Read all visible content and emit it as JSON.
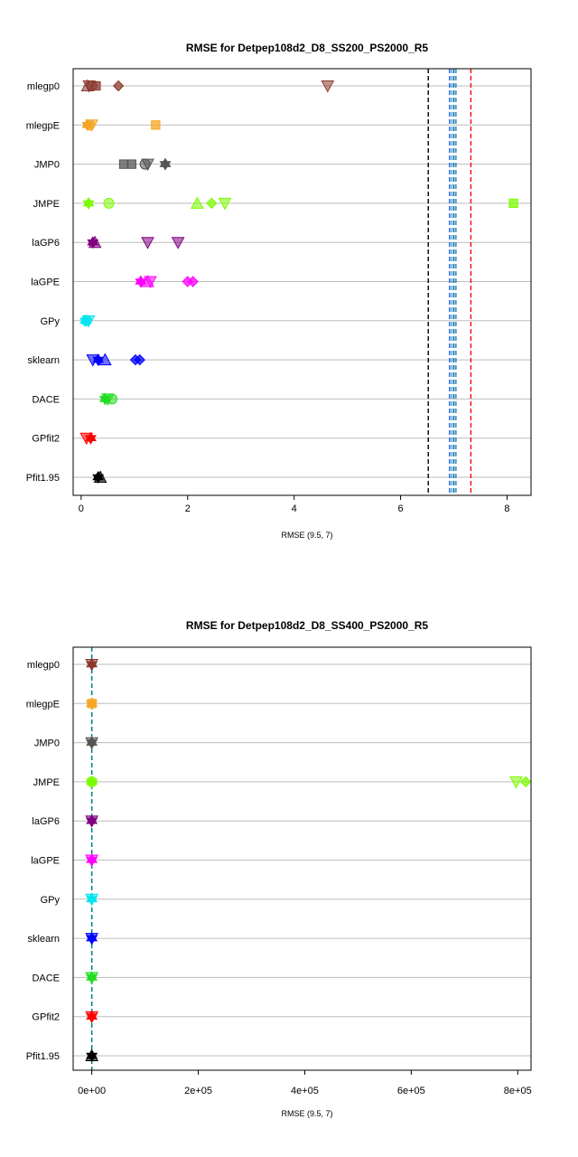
{
  "chart_data": [
    {
      "type": "scatter",
      "title": "RMSE for Detpep108d2_D8_SS200_PS2000_R5",
      "xlabel": "RMSE (9.5, 7)",
      "ylabel": "",
      "xlim": [
        -0.15,
        8.45
      ],
      "xticks": [
        0,
        2,
        4,
        6,
        8
      ],
      "xtick_labels": [
        "0",
        "2",
        "4",
        "6",
        "8"
      ],
      "grid": "horizontal",
      "categories": [
        "mlegp0",
        "mlegpE",
        "JMP0",
        "JMPE",
        "laGP6",
        "laGPE",
        "GPy",
        "sklearn",
        "DACE",
        "GPfit2",
        "GPfit1.95"
      ],
      "category_labels": [
        "mlegp0",
        "mlegpE",
        "JMP0",
        "JMPE",
        "laGP6",
        "laGPE",
        "GPy",
        "sklearn",
        "DACE",
        "GPfit2",
        "Pfit1.95"
      ],
      "reference_lines": [
        {
          "x": 6.52,
          "color": "#000000"
        },
        {
          "x": 6.92,
          "color": "#1f5fcf"
        },
        {
          "x": 6.96,
          "color": "#3aa0ff"
        },
        {
          "x": 7.0,
          "color": "#006464"
        },
        {
          "x": 7.04,
          "color": "#1a7fdc"
        },
        {
          "x": 7.32,
          "color": "#ff0000"
        }
      ],
      "series": [
        {
          "category": "mlegp0",
          "color": "#8b3a2e",
          "points": [
            [
              0.15,
              "triangle_down"
            ],
            [
              0.2,
              "circle"
            ],
            [
              0.28,
              "square"
            ],
            [
              0.12,
              "triangle_up"
            ],
            [
              0.7,
              "diamond"
            ],
            [
              4.63,
              "triangle_down"
            ]
          ]
        },
        {
          "category": "mlegpE",
          "color": "#f5a623",
          "points": [
            [
              0.12,
              "star"
            ],
            [
              0.16,
              "circle"
            ],
            [
              0.2,
              "triangle_down"
            ],
            [
              1.4,
              "square"
            ]
          ]
        },
        {
          "category": "JMP0",
          "color": "#555555",
          "points": [
            [
              0.8,
              "square"
            ],
            [
              0.95,
              "square"
            ],
            [
              1.2,
              "circle"
            ],
            [
              1.25,
              "triangle_down"
            ],
            [
              1.58,
              "star"
            ]
          ]
        },
        {
          "category": "JMPE",
          "color": "#7cfc00",
          "points": [
            [
              0.14,
              "star"
            ],
            [
              0.52,
              "circle"
            ],
            [
              2.18,
              "triangle_up"
            ],
            [
              2.45,
              "diamond"
            ],
            [
              2.7,
              "triangle_down"
            ],
            [
              8.12,
              "square"
            ]
          ]
        },
        {
          "category": "laGP6",
          "color": "#800080",
          "points": [
            [
              0.22,
              "star"
            ],
            [
              0.26,
              "triangle_up"
            ],
            [
              1.25,
              "triangle_down"
            ],
            [
              1.82,
              "triangle_down"
            ]
          ]
        },
        {
          "category": "laGPE",
          "color": "#ff00ff",
          "points": [
            [
              1.12,
              "star"
            ],
            [
              1.25,
              "triangle_up"
            ],
            [
              1.3,
              "triangle_down"
            ],
            [
              2.0,
              "diamond"
            ],
            [
              2.1,
              "diamond"
            ]
          ]
        },
        {
          "category": "GPy",
          "color": "#00e5ee",
          "points": [
            [
              0.08,
              "star"
            ],
            [
              0.1,
              "circle"
            ],
            [
              0.14,
              "triangle_down"
            ]
          ]
        },
        {
          "category": "sklearn",
          "color": "#0000ff",
          "points": [
            [
              0.22,
              "triangle_down"
            ],
            [
              0.32,
              "star"
            ],
            [
              0.45,
              "triangle_up"
            ],
            [
              1.02,
              "diamond"
            ],
            [
              1.1,
              "diamond"
            ]
          ]
        },
        {
          "category": "DACE",
          "color": "#22dd22",
          "points": [
            [
              0.45,
              "star"
            ],
            [
              0.5,
              "triangle_down"
            ],
            [
              0.58,
              "circle"
            ]
          ]
        },
        {
          "category": "GPfit2",
          "color": "#ff0000",
          "points": [
            [
              0.1,
              "triangle_down"
            ],
            [
              0.18,
              "star"
            ]
          ]
        },
        {
          "category": "GPfit1.95",
          "color": "#000000",
          "points": [
            [
              0.32,
              "star"
            ],
            [
              0.36,
              "triangle_up"
            ]
          ]
        }
      ]
    },
    {
      "type": "scatter",
      "title": "RMSE for Detpep108d2_D8_SS400_PS2000_R5",
      "xlabel": "RMSE (9.5, 7)",
      "ylabel": "",
      "xlim": [
        -35000,
        825000
      ],
      "xticks": [
        0,
        200000,
        400000,
        600000,
        800000
      ],
      "xtick_labels": [
        "0e+00",
        "2e+05",
        "4e+05",
        "6e+05",
        "8e+05"
      ],
      "grid": "horizontal",
      "categories": [
        "mlegp0",
        "mlegpE",
        "JMP0",
        "JMPE",
        "laGP6",
        "laGPE",
        "GPy",
        "sklearn",
        "DACE",
        "GPfit2",
        "GPfit1.95"
      ],
      "category_labels": [
        "mlegp0",
        "mlegpE",
        "JMP0",
        "JMPE",
        "laGP6",
        "laGPE",
        "GPy",
        "sklearn",
        "DACE",
        "GPfit2",
        "Pfit1.95"
      ],
      "reference_lines": [
        {
          "x": 0,
          "color": "#1a7fdc"
        },
        {
          "x": 0,
          "color": "#008080"
        }
      ],
      "series": [
        {
          "category": "mlegp0",
          "color": "#8b3a2e",
          "points": [
            [
              0,
              "star"
            ],
            [
              0,
              "triangle_down"
            ]
          ]
        },
        {
          "category": "mlegpE",
          "color": "#f5a623",
          "points": [
            [
              0,
              "star"
            ],
            [
              0,
              "square"
            ]
          ]
        },
        {
          "category": "JMP0",
          "color": "#555555",
          "points": [
            [
              0,
              "star"
            ],
            [
              0,
              "triangle_down"
            ]
          ]
        },
        {
          "category": "JMPE",
          "color": "#7cfc00",
          "points": [
            [
              0,
              "star"
            ],
            [
              0,
              "circle"
            ],
            [
              797000,
              "triangle_down"
            ],
            [
              815000,
              "diamond"
            ]
          ]
        },
        {
          "category": "laGP6",
          "color": "#800080",
          "points": [
            [
              0,
              "star"
            ],
            [
              0,
              "triangle_down"
            ]
          ]
        },
        {
          "category": "laGPE",
          "color": "#ff00ff",
          "points": [
            [
              0,
              "star"
            ],
            [
              0,
              "triangle_down"
            ]
          ]
        },
        {
          "category": "GPy",
          "color": "#00e5ee",
          "points": [
            [
              0,
              "star"
            ],
            [
              0,
              "triangle_down"
            ]
          ]
        },
        {
          "category": "sklearn",
          "color": "#0000ff",
          "points": [
            [
              0,
              "star"
            ],
            [
              0,
              "triangle_down"
            ]
          ]
        },
        {
          "category": "DACE",
          "color": "#22dd22",
          "points": [
            [
              0,
              "star"
            ],
            [
              0,
              "triangle_down"
            ]
          ]
        },
        {
          "category": "GPfit2",
          "color": "#ff0000",
          "points": [
            [
              0,
              "star"
            ],
            [
              0,
              "triangle_down"
            ]
          ]
        },
        {
          "category": "GPfit1.95",
          "color": "#000000",
          "points": [
            [
              0,
              "star"
            ],
            [
              0,
              "triangle_up"
            ]
          ]
        }
      ]
    }
  ]
}
